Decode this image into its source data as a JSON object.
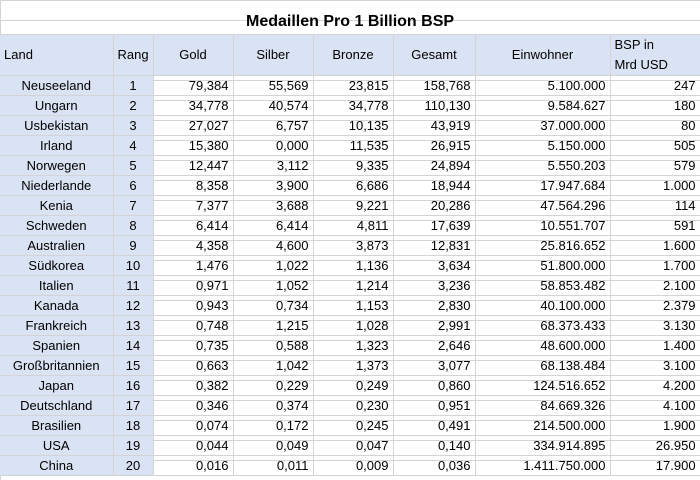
{
  "title": "Medaillen Pro 1 Billion BSP",
  "headers": {
    "land": "Land",
    "rang": "Rang",
    "gold": "Gold",
    "silber": "Silber",
    "bronze": "Bronze",
    "gesamt": "Gesamt",
    "einwohner": "Einwohner",
    "bsp_line1": "BSP in",
    "bsp_line2": "Mrd USD"
  },
  "rows": [
    {
      "land": "Neuseeland",
      "rang": "1",
      "gold": "79,384",
      "silber": "55,569",
      "bronze": "23,815",
      "gesamt": "158,768",
      "einwohner": "5.100.000",
      "bsp": "247"
    },
    {
      "land": "Ungarn",
      "rang": "2",
      "gold": "34,778",
      "silber": "40,574",
      "bronze": "34,778",
      "gesamt": "110,130",
      "einwohner": "9.584.627",
      "bsp": "180"
    },
    {
      "land": "Usbekistan",
      "rang": "3",
      "gold": "27,027",
      "silber": "6,757",
      "bronze": "10,135",
      "gesamt": "43,919",
      "einwohner": "37.000.000",
      "bsp": "80"
    },
    {
      "land": "Irland",
      "rang": "4",
      "gold": "15,380",
      "silber": "0,000",
      "bronze": "11,535",
      "gesamt": "26,915",
      "einwohner": "5.150.000",
      "bsp": "505"
    },
    {
      "land": "Norwegen",
      "rang": "5",
      "gold": "12,447",
      "silber": "3,112",
      "bronze": "9,335",
      "gesamt": "24,894",
      "einwohner": "5.550.203",
      "bsp": "579"
    },
    {
      "land": "Niederlande",
      "rang": "6",
      "gold": "8,358",
      "silber": "3,900",
      "bronze": "6,686",
      "gesamt": "18,944",
      "einwohner": "17.947.684",
      "bsp": "1.000"
    },
    {
      "land": "Kenia",
      "rang": "7",
      "gold": "7,377",
      "silber": "3,688",
      "bronze": "9,221",
      "gesamt": "20,286",
      "einwohner": "47.564.296",
      "bsp": "114"
    },
    {
      "land": "Schweden",
      "rang": "8",
      "gold": "6,414",
      "silber": "6,414",
      "bronze": "4,811",
      "gesamt": "17,639",
      "einwohner": "10.551.707",
      "bsp": "591"
    },
    {
      "land": "Australien",
      "rang": "9",
      "gold": "4,358",
      "silber": "4,600",
      "bronze": "3,873",
      "gesamt": "12,831",
      "einwohner": "25.816.652",
      "bsp": "1.600"
    },
    {
      "land": "Südkorea",
      "rang": "10",
      "gold": "1,476",
      "silber": "1,022",
      "bronze": "1,136",
      "gesamt": "3,634",
      "einwohner": "51.800.000",
      "bsp": "1.700"
    },
    {
      "land": "Italien",
      "rang": "11",
      "gold": "0,971",
      "silber": "1,052",
      "bronze": "1,214",
      "gesamt": "3,236",
      "einwohner": "58.853.482",
      "bsp": "2.100"
    },
    {
      "land": "Kanada",
      "rang": "12",
      "gold": "0,943",
      "silber": "0,734",
      "bronze": "1,153",
      "gesamt": "2,830",
      "einwohner": "40.100.000",
      "bsp": "2.379"
    },
    {
      "land": "Frankreich",
      "rang": "13",
      "gold": "0,748",
      "silber": "1,215",
      "bronze": "1,028",
      "gesamt": "2,991",
      "einwohner": "68.373.433",
      "bsp": "3.130"
    },
    {
      "land": "Spanien",
      "rang": "14",
      "gold": "0,735",
      "silber": "0,588",
      "bronze": "1,323",
      "gesamt": "2,646",
      "einwohner": "48.600.000",
      "bsp": "1.400"
    },
    {
      "land": "Großbritannien",
      "rang": "15",
      "gold": "0,663",
      "silber": "1,042",
      "bronze": "1,373",
      "gesamt": "3,077",
      "einwohner": "68.138.484",
      "bsp": "3.100"
    },
    {
      "land": "Japan",
      "rang": "16",
      "gold": "0,382",
      "silber": "0,229",
      "bronze": "0,249",
      "gesamt": "0,860",
      "einwohner": "124.516.652",
      "bsp": "4.200"
    },
    {
      "land": "Deutschland",
      "rang": "17",
      "gold": "0,346",
      "silber": "0,374",
      "bronze": "0,230",
      "gesamt": "0,951",
      "einwohner": "84.669.326",
      "bsp": "4.100"
    },
    {
      "land": "Brasilien",
      "rang": "18",
      "gold": "0,074",
      "silber": "0,172",
      "bronze": "0,245",
      "gesamt": "0,491",
      "einwohner": "214.500.000",
      "bsp": "1.900"
    },
    {
      "land": "USA",
      "rang": "19",
      "gold": "0,044",
      "silber": "0,049",
      "bronze": "0,047",
      "gesamt": "0,140",
      "einwohner": "334.914.895",
      "bsp": "26.950"
    },
    {
      "land": "China",
      "rang": "20",
      "gold": "0,016",
      "silber": "0,011",
      "bronze": "0,009",
      "gesamt": "0,036",
      "einwohner": "1.411.750.000",
      "bsp": "17.900"
    }
  ],
  "colors": {
    "header_fill": "#dae3f3",
    "gridline": "#d4d4d4"
  }
}
